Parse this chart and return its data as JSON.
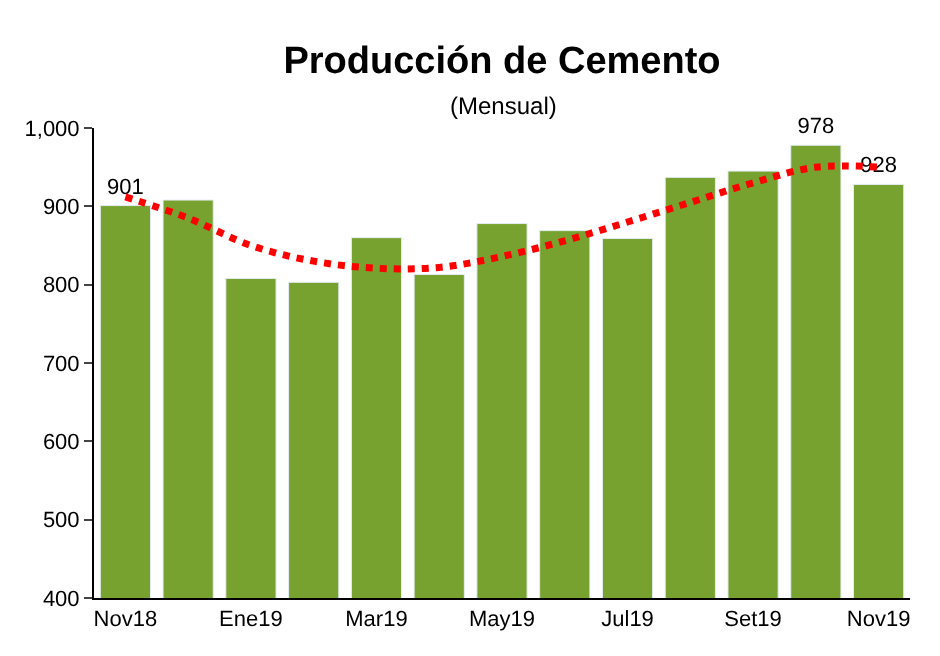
{
  "chart_data": {
    "type": "bar",
    "title": "Producción de Cemento",
    "subtitle": "(Mensual)",
    "categories": [
      "Nov18",
      null,
      "Ene19",
      null,
      "Mar19",
      null,
      "May19",
      null,
      "Jul19",
      null,
      "Set19",
      null,
      "Nov19"
    ],
    "series": [
      {
        "color": "#78a22f",
        "values": [
          901,
          908,
          808,
          803,
          860,
          813,
          878,
          869,
          859,
          937,
          945,
          978,
          928
        ],
        "value_labels": [
          "901",
          null,
          null,
          null,
          null,
          null,
          null,
          null,
          null,
          null,
          null,
          "978",
          "928"
        ]
      },
      {
        "type": "line",
        "color": "#ff0000",
        "line_style": "dotted",
        "values": [
          912,
          885,
          850,
          830,
          821,
          822,
          836,
          856,
          880,
          905,
          930,
          950,
          950
        ]
      }
    ],
    "ylim": [
      400,
      1000
    ],
    "yticks": [
      400,
      500,
      600,
      700,
      800,
      900,
      {
        "value": 1000,
        "label": "1,000"
      }
    ]
  }
}
